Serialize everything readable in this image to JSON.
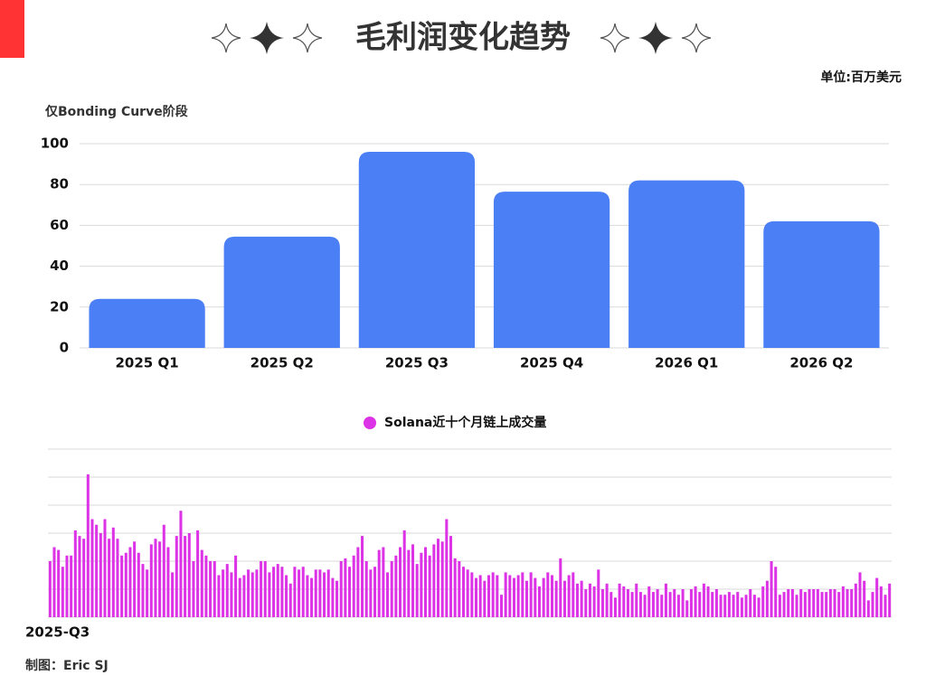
{
  "title": "毛利润变化趋势",
  "unit": "单位:百万美元",
  "credit": "制图：Eric SJ",
  "chart_data": [
    {
      "type": "bar",
      "subtitle": "仅Bonding Curve阶段",
      "categories": [
        "2025 Q1",
        "2025 Q2",
        "2025 Q3",
        "2025 Q4",
        "2026 Q1",
        "2026 Q2"
      ],
      "values": [
        24,
        54.5,
        96,
        76.5,
        82,
        62
      ],
      "color": "#4a7ff5",
      "ylim": [
        0,
        100
      ],
      "yticks": [
        0,
        20,
        40,
        60,
        80,
        100
      ],
      "grid": true
    },
    {
      "type": "bar",
      "legend": "top",
      "categories": [
        "2025-Q3",
        null,
        null,
        null,
        null,
        null,
        null,
        null,
        null,
        null,
        null,
        null,
        null,
        null,
        null,
        null,
        null,
        null,
        null,
        null,
        null,
        null,
        null,
        null,
        null,
        null,
        null,
        null,
        null,
        null,
        null,
        null,
        null,
        null,
        null,
        null,
        null,
        null,
        null,
        null,
        null,
        null,
        null,
        null,
        null,
        null,
        null,
        null,
        null,
        null,
        null,
        null,
        null,
        null,
        null,
        null,
        null,
        null,
        null,
        null,
        null,
        null,
        null,
        null,
        null,
        null,
        null,
        null,
        null,
        null,
        null,
        null,
        null,
        null,
        null,
        null,
        null,
        null,
        null,
        null,
        null,
        null,
        null,
        null,
        null,
        null,
        null,
        null,
        null,
        null,
        null,
        null,
        null,
        null,
        null,
        null,
        null,
        null,
        null,
        null,
        null,
        null,
        null,
        null,
        null,
        null,
        null,
        null,
        null,
        null,
        null,
        null,
        null,
        null,
        null,
        null,
        null,
        null,
        null,
        null,
        null,
        null,
        null,
        null,
        null,
        null,
        null,
        null,
        null,
        null,
        null,
        null,
        null,
        null,
        null,
        null,
        null,
        null,
        null,
        null,
        null,
        null,
        null,
        null,
        null,
        null,
        null,
        null,
        null,
        null,
        null,
        null,
        null,
        null,
        null,
        null,
        null,
        null,
        null,
        null,
        null,
        null,
        null,
        null,
        null,
        null,
        null,
        null,
        null,
        null,
        null,
        null,
        null,
        null,
        null,
        null,
        null,
        null,
        null,
        null,
        null,
        null,
        null,
        null,
        null,
        null,
        null,
        null,
        null,
        null,
        null,
        null,
        null,
        null,
        null,
        null,
        null,
        null,
        null,
        null
      ],
      "series": [
        {
          "name": "Solana近十个月链上成交量",
          "color": "#dd33e6",
          "values": [
            2.0,
            2.5,
            2.4,
            1.8,
            2.2,
            2.2,
            3.1,
            2.9,
            2.8,
            5.1,
            3.5,
            3.3,
            3.0,
            3.5,
            2.8,
            3.2,
            2.8,
            2.2,
            2.3,
            2.5,
            2.7,
            2.3,
            1.9,
            1.7,
            2.6,
            2.8,
            2.7,
            3.3,
            2.5,
            1.6,
            2.9,
            3.8,
            2.9,
            3.0,
            2.0,
            3.1,
            2.4,
            2.2,
            2.0,
            2.0,
            1.5,
            1.7,
            1.9,
            1.6,
            2.2,
            1.4,
            1.5,
            1.7,
            1.6,
            1.7,
            2.0,
            2.0,
            1.6,
            1.8,
            1.9,
            1.8,
            1.5,
            1.2,
            1.8,
            1.7,
            1.8,
            1.5,
            1.4,
            1.7,
            1.7,
            1.6,
            1.7,
            1.4,
            1.3,
            2.0,
            2.1,
            1.8,
            2.2,
            2.5,
            2.9,
            2.0,
            1.7,
            1.8,
            2.4,
            2.5,
            1.6,
            2.0,
            2.2,
            2.5,
            3.1,
            2.4,
            2.6,
            1.9,
            2.3,
            2.5,
            2.2,
            2.6,
            2.8,
            2.7,
            3.5,
            2.9,
            2.1,
            2.0,
            1.8,
            1.7,
            1.6,
            1.4,
            1.5,
            1.3,
            1.5,
            1.6,
            1.5,
            0.8,
            1.6,
            1.5,
            1.4,
            1.5,
            1.6,
            1.3,
            1.6,
            1.4,
            1.1,
            1.4,
            1.6,
            1.5,
            1.3,
            2.1,
            1.3,
            1.5,
            1.6,
            1.2,
            1.3,
            1.0,
            1.2,
            1.1,
            1.7,
            1.0,
            1.2,
            0.9,
            0.7,
            1.2,
            1.1,
            1.0,
            0.9,
            1.2,
            0.9,
            0.8,
            1.1,
            0.9,
            1.0,
            0.8,
            1.2,
            0.9,
            1.0,
            0.8,
            1.0,
            0.6,
            1.0,
            1.1,
            0.9,
            1.2,
            1.1,
            0.9,
            1.0,
            0.8,
            0.8,
            0.9,
            0.8,
            0.9,
            0.7,
            0.8,
            1.0,
            0.8,
            0.7,
            1.1,
            1.3,
            2.0,
            1.8,
            0.8,
            0.9,
            1.0,
            1.0,
            0.8,
            1.0,
            0.9,
            1.0,
            1.0,
            1.0,
            0.9,
            0.9,
            1.0,
            1.0,
            0.9,
            1.1,
            1.0,
            1.0,
            1.2,
            1.6,
            1.3,
            0.6,
            0.9,
            1.4,
            1.1,
            0.8,
            1.2
          ]
        }
      ],
      "ylim": [
        0,
        6
      ],
      "yticks": [
        0,
        1,
        2,
        3,
        4,
        5,
        6
      ],
      "ytick_labels": false,
      "grid": true
    }
  ]
}
